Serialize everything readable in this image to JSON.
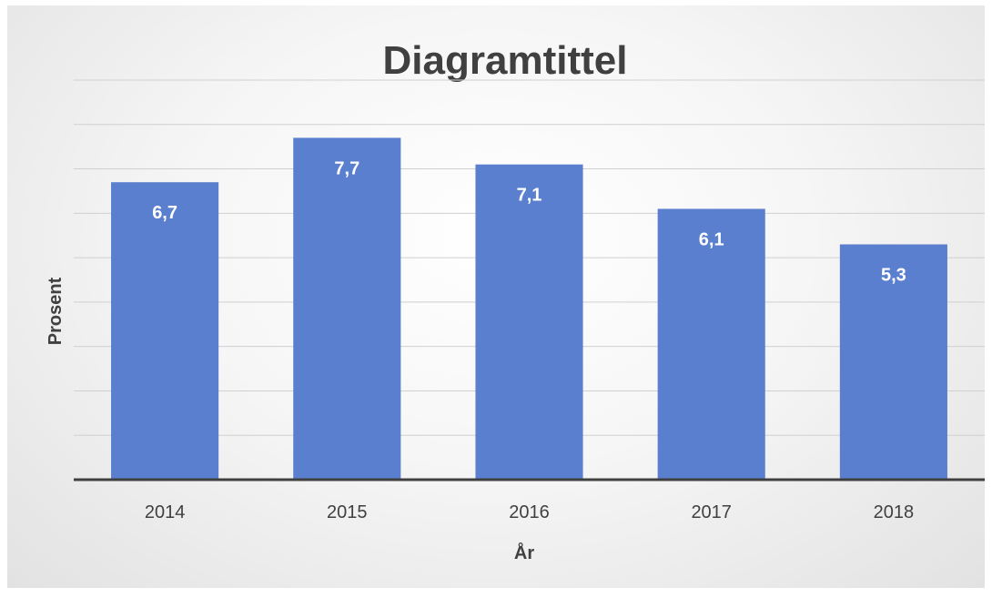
{
  "chart_data": {
    "type": "bar",
    "title": "Diagramtittel",
    "categories": [
      "2014",
      "2015",
      "2016",
      "2017",
      "2018"
    ],
    "values": [
      6.7,
      7.7,
      7.1,
      6.1,
      5.3
    ],
    "value_labels": [
      "6,7",
      "7,7",
      "7,1",
      "6,1",
      "5,3"
    ],
    "xlabel": "År",
    "ylabel": "Prosent",
    "ylim": [
      0,
      9
    ],
    "y_gridline_step": 1,
    "grid": true,
    "legend": "none",
    "bar_color": "#5b7fcf",
    "gridline_color": "#d0d0d0",
    "axis_color": "#404040"
  }
}
